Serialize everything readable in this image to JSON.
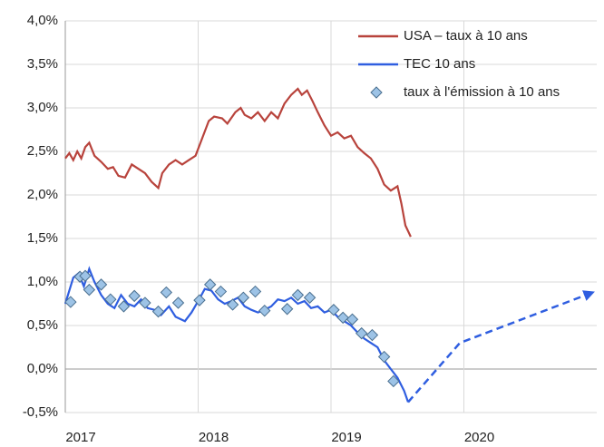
{
  "chart_data": {
    "type": "line",
    "xlim": [
      2017,
      2021
    ],
    "xticks": [
      2017,
      2018,
      2019,
      2020
    ],
    "ylim": [
      -0.5,
      4.0
    ],
    "yticks": [
      {
        "value": -0.5,
        "label": "-0,5%"
      },
      {
        "value": 0.0,
        "label": "0,0%"
      },
      {
        "value": 0.5,
        "label": "0,5%"
      },
      {
        "value": 1.0,
        "label": "1,0%"
      },
      {
        "value": 1.5,
        "label": "1,5%"
      },
      {
        "value": 2.0,
        "label": "2,0%"
      },
      {
        "value": 2.5,
        "label": "2,5%"
      },
      {
        "value": 3.0,
        "label": "3,0%"
      },
      {
        "value": 3.5,
        "label": "3,5%"
      },
      {
        "value": 4.0,
        "label": "4,0%"
      }
    ],
    "grid": true,
    "legend": "top-right",
    "series": [
      {
        "name": "USA – taux à 10 ans",
        "type": "line",
        "color": "#b8433c",
        "x": [
          2017.0,
          2017.03,
          2017.06,
          2017.09,
          2017.12,
          2017.15,
          2017.18,
          2017.22,
          2017.27,
          2017.32,
          2017.36,
          2017.4,
          2017.45,
          2017.5,
          2017.55,
          2017.6,
          2017.65,
          2017.7,
          2017.73,
          2017.78,
          2017.83,
          2017.88,
          2017.93,
          2017.98,
          2018.03,
          2018.08,
          2018.12,
          2018.18,
          2018.22,
          2018.28,
          2018.32,
          2018.35,
          2018.4,
          2018.45,
          2018.5,
          2018.55,
          2018.6,
          2018.65,
          2018.7,
          2018.75,
          2018.78,
          2018.82,
          2018.86,
          2018.9,
          2018.95,
          2019.0,
          2019.05,
          2019.1,
          2019.15,
          2019.2,
          2019.25,
          2019.3,
          2019.35,
          2019.4,
          2019.45,
          2019.5,
          2019.53,
          2019.56,
          2019.6
        ],
        "values": [
          2.42,
          2.48,
          2.4,
          2.5,
          2.42,
          2.55,
          2.6,
          2.45,
          2.38,
          2.3,
          2.32,
          2.22,
          2.2,
          2.35,
          2.3,
          2.25,
          2.15,
          2.08,
          2.25,
          2.35,
          2.4,
          2.35,
          2.4,
          2.45,
          2.65,
          2.85,
          2.9,
          2.88,
          2.82,
          2.95,
          3.0,
          2.92,
          2.88,
          2.95,
          2.85,
          2.95,
          2.88,
          3.05,
          3.15,
          3.22,
          3.15,
          3.2,
          3.08,
          2.95,
          2.8,
          2.68,
          2.72,
          2.65,
          2.68,
          2.55,
          2.48,
          2.42,
          2.3,
          2.12,
          2.05,
          2.1,
          1.9,
          1.65,
          1.52
        ]
      },
      {
        "name": "TEC 10 ans",
        "type": "line",
        "color": "#2f5ee0",
        "x": [
          2017.0,
          2017.03,
          2017.06,
          2017.1,
          2017.14,
          2017.18,
          2017.22,
          2017.27,
          2017.32,
          2017.37,
          2017.42,
          2017.47,
          2017.52,
          2017.57,
          2017.62,
          2017.67,
          2017.72,
          2017.78,
          2017.83,
          2017.9,
          2017.95,
          2018.0,
          2018.05,
          2018.1,
          2018.15,
          2018.2,
          2018.25,
          2018.3,
          2018.35,
          2018.4,
          2018.45,
          2018.5,
          2018.55,
          2018.6,
          2018.65,
          2018.7,
          2018.75,
          2018.8,
          2018.85,
          2018.9,
          2018.95,
          2019.0,
          2019.05,
          2019.1,
          2019.15,
          2019.2,
          2019.25,
          2019.3,
          2019.35,
          2019.4,
          2019.45,
          2019.5,
          2019.55,
          2019.58
        ],
        "values": [
          0.75,
          0.9,
          1.05,
          1.1,
          0.95,
          1.15,
          1.0,
          0.85,
          0.75,
          0.7,
          0.85,
          0.75,
          0.72,
          0.8,
          0.7,
          0.68,
          0.62,
          0.72,
          0.6,
          0.55,
          0.65,
          0.78,
          0.92,
          0.9,
          0.8,
          0.75,
          0.78,
          0.82,
          0.72,
          0.68,
          0.65,
          0.68,
          0.72,
          0.8,
          0.78,
          0.82,
          0.75,
          0.78,
          0.7,
          0.72,
          0.65,
          0.68,
          0.6,
          0.55,
          0.5,
          0.42,
          0.35,
          0.3,
          0.25,
          0.1,
          0.0,
          -0.1,
          -0.25,
          -0.38
        ],
        "projection": {
          "x": [
            2019.58,
            2019.97,
            2020.97
          ],
          "values": [
            -0.38,
            0.3,
            0.88
          ]
        }
      },
      {
        "name": "taux à l'émission  à 10 ans",
        "type": "scatter",
        "color": "#9dc3e6",
        "x": [
          2017.04,
          2017.11,
          2017.15,
          2017.18,
          2017.27,
          2017.34,
          2017.44,
          2017.52,
          2017.6,
          2017.7,
          2017.76,
          2017.85,
          2018.01,
          2018.09,
          2018.17,
          2018.26,
          2018.34,
          2018.43,
          2018.5,
          2018.67,
          2018.75,
          2018.84,
          2019.02,
          2019.09,
          2019.16,
          2019.23,
          2019.31,
          2019.4,
          2019.47
        ],
        "values": [
          0.77,
          1.06,
          1.07,
          0.91,
          0.97,
          0.8,
          0.72,
          0.84,
          0.76,
          0.66,
          0.88,
          0.76,
          0.79,
          0.97,
          0.89,
          0.74,
          0.82,
          0.89,
          0.67,
          0.69,
          0.85,
          0.82,
          0.68,
          0.59,
          0.57,
          0.41,
          0.39,
          0.14,
          -0.14
        ]
      }
    ]
  }
}
